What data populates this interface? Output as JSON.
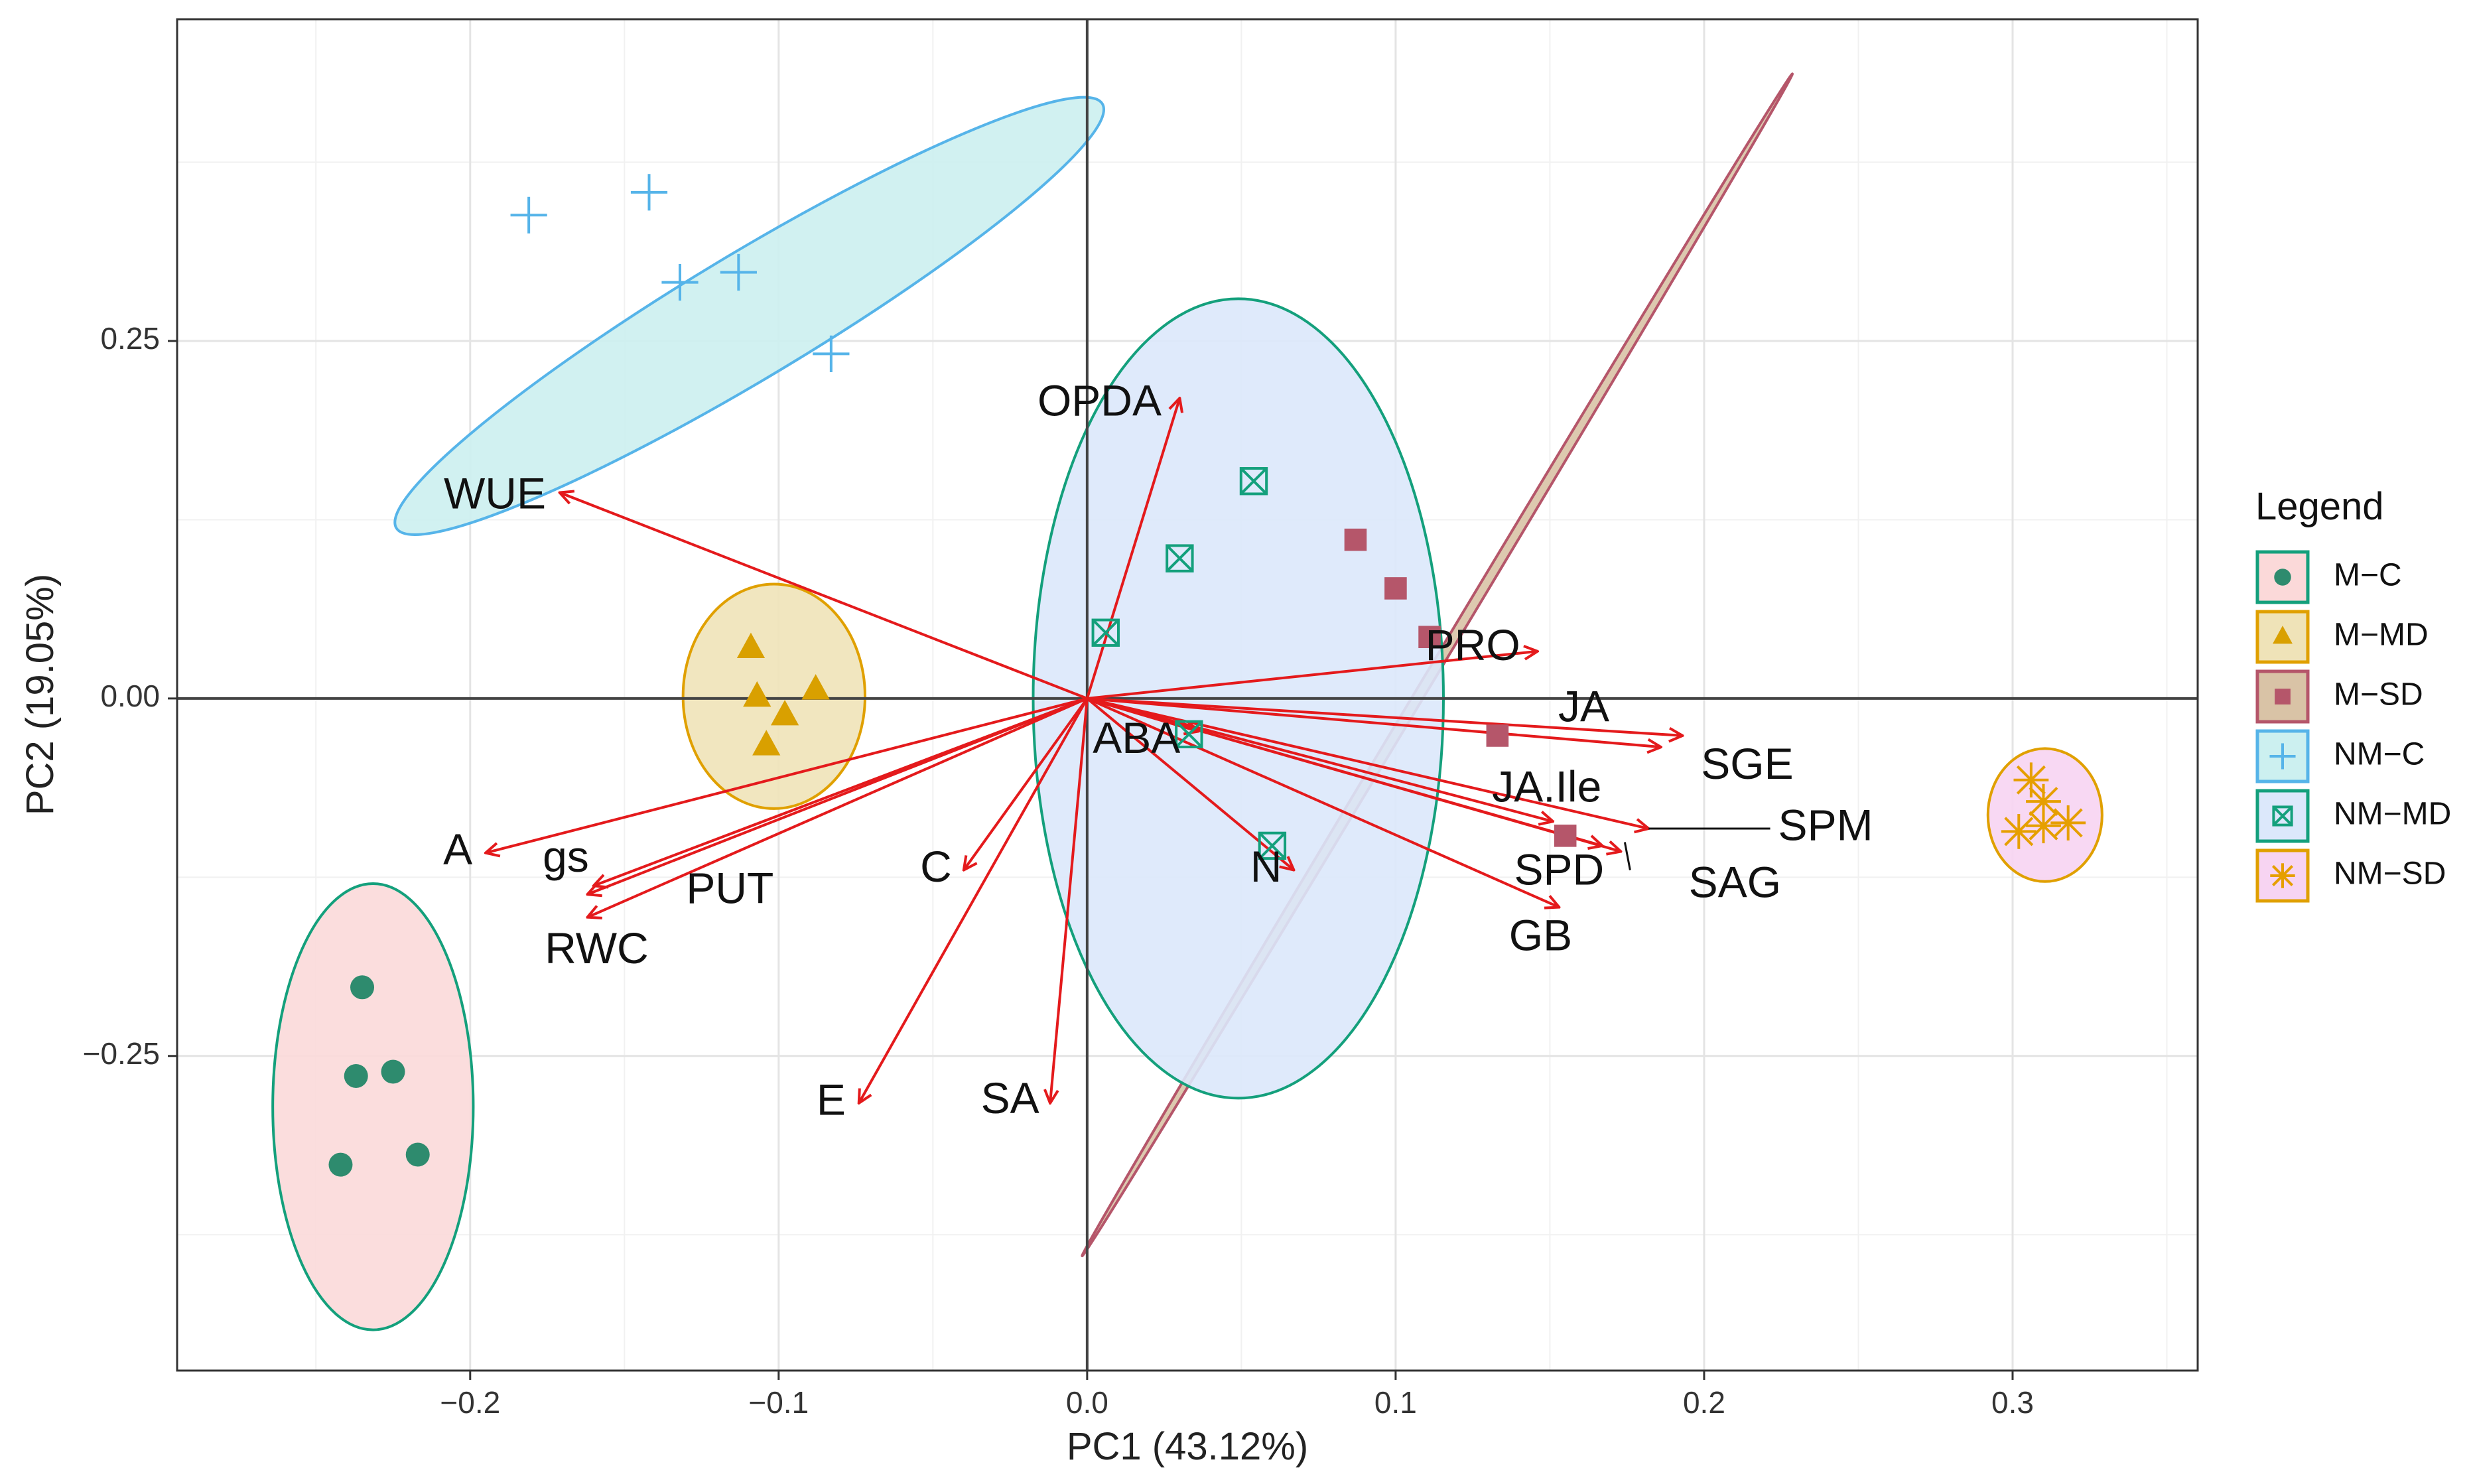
{
  "chart_data": {
    "type": "scatter",
    "subtype": "pca-biplot",
    "title": "",
    "xlabel": "PC1 (43.12%)",
    "ylabel": "PC2 (19.05%)",
    "xlim": [
      -0.295,
      0.36
    ],
    "ylim": [
      -0.47,
      0.475
    ],
    "xticks": [
      -0.2,
      -0.1,
      0.0,
      0.1,
      0.2,
      0.3
    ],
    "xtick_labels": [
      "−0.2",
      "−0.1",
      "0.0",
      "0.1",
      "0.2",
      "0.3"
    ],
    "yticks": [
      -0.25,
      0.0,
      0.25
    ],
    "ytick_labels": [
      "−0.25",
      "0.00",
      "0.25"
    ],
    "grid": true,
    "legend": {
      "title": "Legend",
      "placement": "right"
    },
    "groups": [
      {
        "name": "M−C",
        "shape": "circle",
        "color": "#2E8B6E",
        "ellipse_edge": "#14A07C",
        "ellipse_fill": "#FBD9D9",
        "points": [
          [
            -0.235,
            -0.202
          ],
          [
            -0.237,
            -0.264
          ],
          [
            -0.225,
            -0.261
          ],
          [
            -0.242,
            -0.326
          ],
          [
            -0.217,
            -0.319
          ]
        ],
        "ellipse": {
          "cx": -0.2315,
          "cy": -0.2855,
          "rx": 0.0325,
          "ry": 0.156,
          "angle": 0
        }
      },
      {
        "name": "M−MD",
        "shape": "triangle",
        "color": "#D9A000",
        "ellipse_edge": "#E0A000",
        "ellipse_fill": "#EFE3B8",
        "points": [
          [
            -0.109,
            0.035
          ],
          [
            -0.107,
            0.001
          ],
          [
            -0.088,
            0.006
          ],
          [
            -0.098,
            -0.012
          ],
          [
            -0.104,
            -0.033
          ]
        ],
        "ellipse": {
          "cx": -0.1015,
          "cy": 0.0015,
          "rx": 0.0295,
          "ry": 0.0785,
          "angle": 0
        }
      },
      {
        "name": "M−SD",
        "shape": "square",
        "color": "#B5566A",
        "ellipse_edge": "#B5566A",
        "ellipse_fill": "#D9C3A6",
        "points": [
          [
            0.087,
            0.111
          ],
          [
            0.1,
            0.077
          ],
          [
            0.111,
            0.043
          ],
          [
            0.133,
            -0.026
          ],
          [
            0.155,
            -0.096
          ]
        ],
        "ellipse": {
          "cx": 0.1135,
          "cy": 0.0235,
          "rx": 0.2235,
          "ry": 0.0035,
          "angle": 59
        }
      },
      {
        "name": "NM−C",
        "shape": "plus",
        "color": "#56B4E9",
        "ellipse_edge": "#56B4E9",
        "ellipse_fill": "#CCF0F0",
        "points": [
          [
            -0.181,
            0.338
          ],
          [
            -0.142,
            0.354
          ],
          [
            -0.132,
            0.291
          ],
          [
            -0.113,
            0.298
          ],
          [
            -0.083,
            0.241
          ]
        ],
        "ellipse": {
          "cx": -0.1095,
          "cy": 0.2675,
          "rx": 0.1335,
          "ry": 0.0435,
          "angle": 31
        }
      },
      {
        "name": "NM−MD",
        "shape": "square-x",
        "color": "#14A07C",
        "ellipse_edge": "#14A07C",
        "ellipse_fill": "#DCE8FB",
        "points": [
          [
            0.054,
            0.152
          ],
          [
            0.03,
            0.098
          ],
          [
            0.006,
            0.046
          ],
          [
            0.033,
            -0.025
          ],
          [
            0.06,
            -0.103
          ]
        ],
        "ellipse": {
          "cx": 0.049,
          "cy": 0.0,
          "rx": 0.0665,
          "ry": 0.2795,
          "angle": 0
        }
      },
      {
        "name": "NM−SD",
        "shape": "asterisk",
        "color": "#E69F00",
        "ellipse_edge": "#E0A000",
        "ellipse_fill": "#F7D4F2",
        "points": [
          [
            0.306,
            -0.057
          ],
          [
            0.31,
            -0.072
          ],
          [
            0.318,
            -0.087
          ],
          [
            0.31,
            -0.089
          ],
          [
            0.302,
            -0.093
          ]
        ],
        "ellipse": {
          "cx": 0.3105,
          "cy": -0.0815,
          "rx": 0.0185,
          "ry": 0.0465,
          "angle": 0
        }
      }
    ],
    "loadings": [
      {
        "name": "OPDA",
        "x": 0.03,
        "y": 0.21,
        "label_x": 0.004,
        "label_y": 0.206
      },
      {
        "name": "WUE",
        "x": -0.171,
        "y": 0.144,
        "label_x": -0.192,
        "label_y": 0.141
      },
      {
        "name": "PRO",
        "x": 0.146,
        "y": 0.033,
        "label_x": 0.125,
        "label_y": 0.035
      },
      {
        "name": "JA",
        "x": 0.193,
        "y": -0.026,
        "label_x": 0.161,
        "label_y": -0.008
      },
      {
        "name": "SGE",
        "x": 0.186,
        "y": -0.034,
        "label_x": 0.199,
        "label_y": -0.048
      },
      {
        "name": "JA.Ile",
        "x": 0.151,
        "y": -0.086,
        "label_x": 0.149,
        "label_y": -0.064
      },
      {
        "name": "SPM",
        "x": 0.182,
        "y": -0.091,
        "label_x": 0.224,
        "label_y": -0.091
      },
      {
        "name": "SPD",
        "x": 0.167,
        "y": -0.103,
        "label_x": 0.153,
        "label_y": -0.122
      },
      {
        "name": "SAG",
        "x": 0.173,
        "y": -0.107,
        "label_x": 0.195,
        "label_y": -0.131
      },
      {
        "name": "GB",
        "x": 0.153,
        "y": -0.146,
        "label_x": 0.147,
        "label_y": -0.168
      },
      {
        "name": "N",
        "x": 0.067,
        "y": -0.12,
        "label_x": 0.058,
        "label_y": -0.12
      },
      {
        "name": "ABA",
        "x": 0.036,
        "y": -0.023,
        "label_x": 0.016,
        "label_y": -0.03
      },
      {
        "name": "C",
        "x": -0.04,
        "y": -0.12,
        "label_x": -0.049,
        "label_y": -0.12
      },
      {
        "name": "E",
        "x": -0.074,
        "y": -0.283,
        "label_x": -0.083,
        "label_y": -0.283
      },
      {
        "name": "SA",
        "x": -0.012,
        "y": -0.283,
        "label_x": -0.025,
        "label_y": -0.282
      },
      {
        "name": "A",
        "x": -0.195,
        "y": -0.108,
        "label_x": -0.204,
        "label_y": -0.108
      },
      {
        "name": "gs",
        "x": -0.16,
        "y": -0.131,
        "label_x": -0.169,
        "label_y": -0.113
      },
      {
        "name": "PUT",
        "x": -0.162,
        "y": -0.137,
        "label_x": -0.13,
        "label_y": -0.135
      },
      {
        "name": "RWC",
        "x": -0.162,
        "y": -0.153,
        "label_x": -0.159,
        "label_y": -0.177
      }
    ]
  }
}
